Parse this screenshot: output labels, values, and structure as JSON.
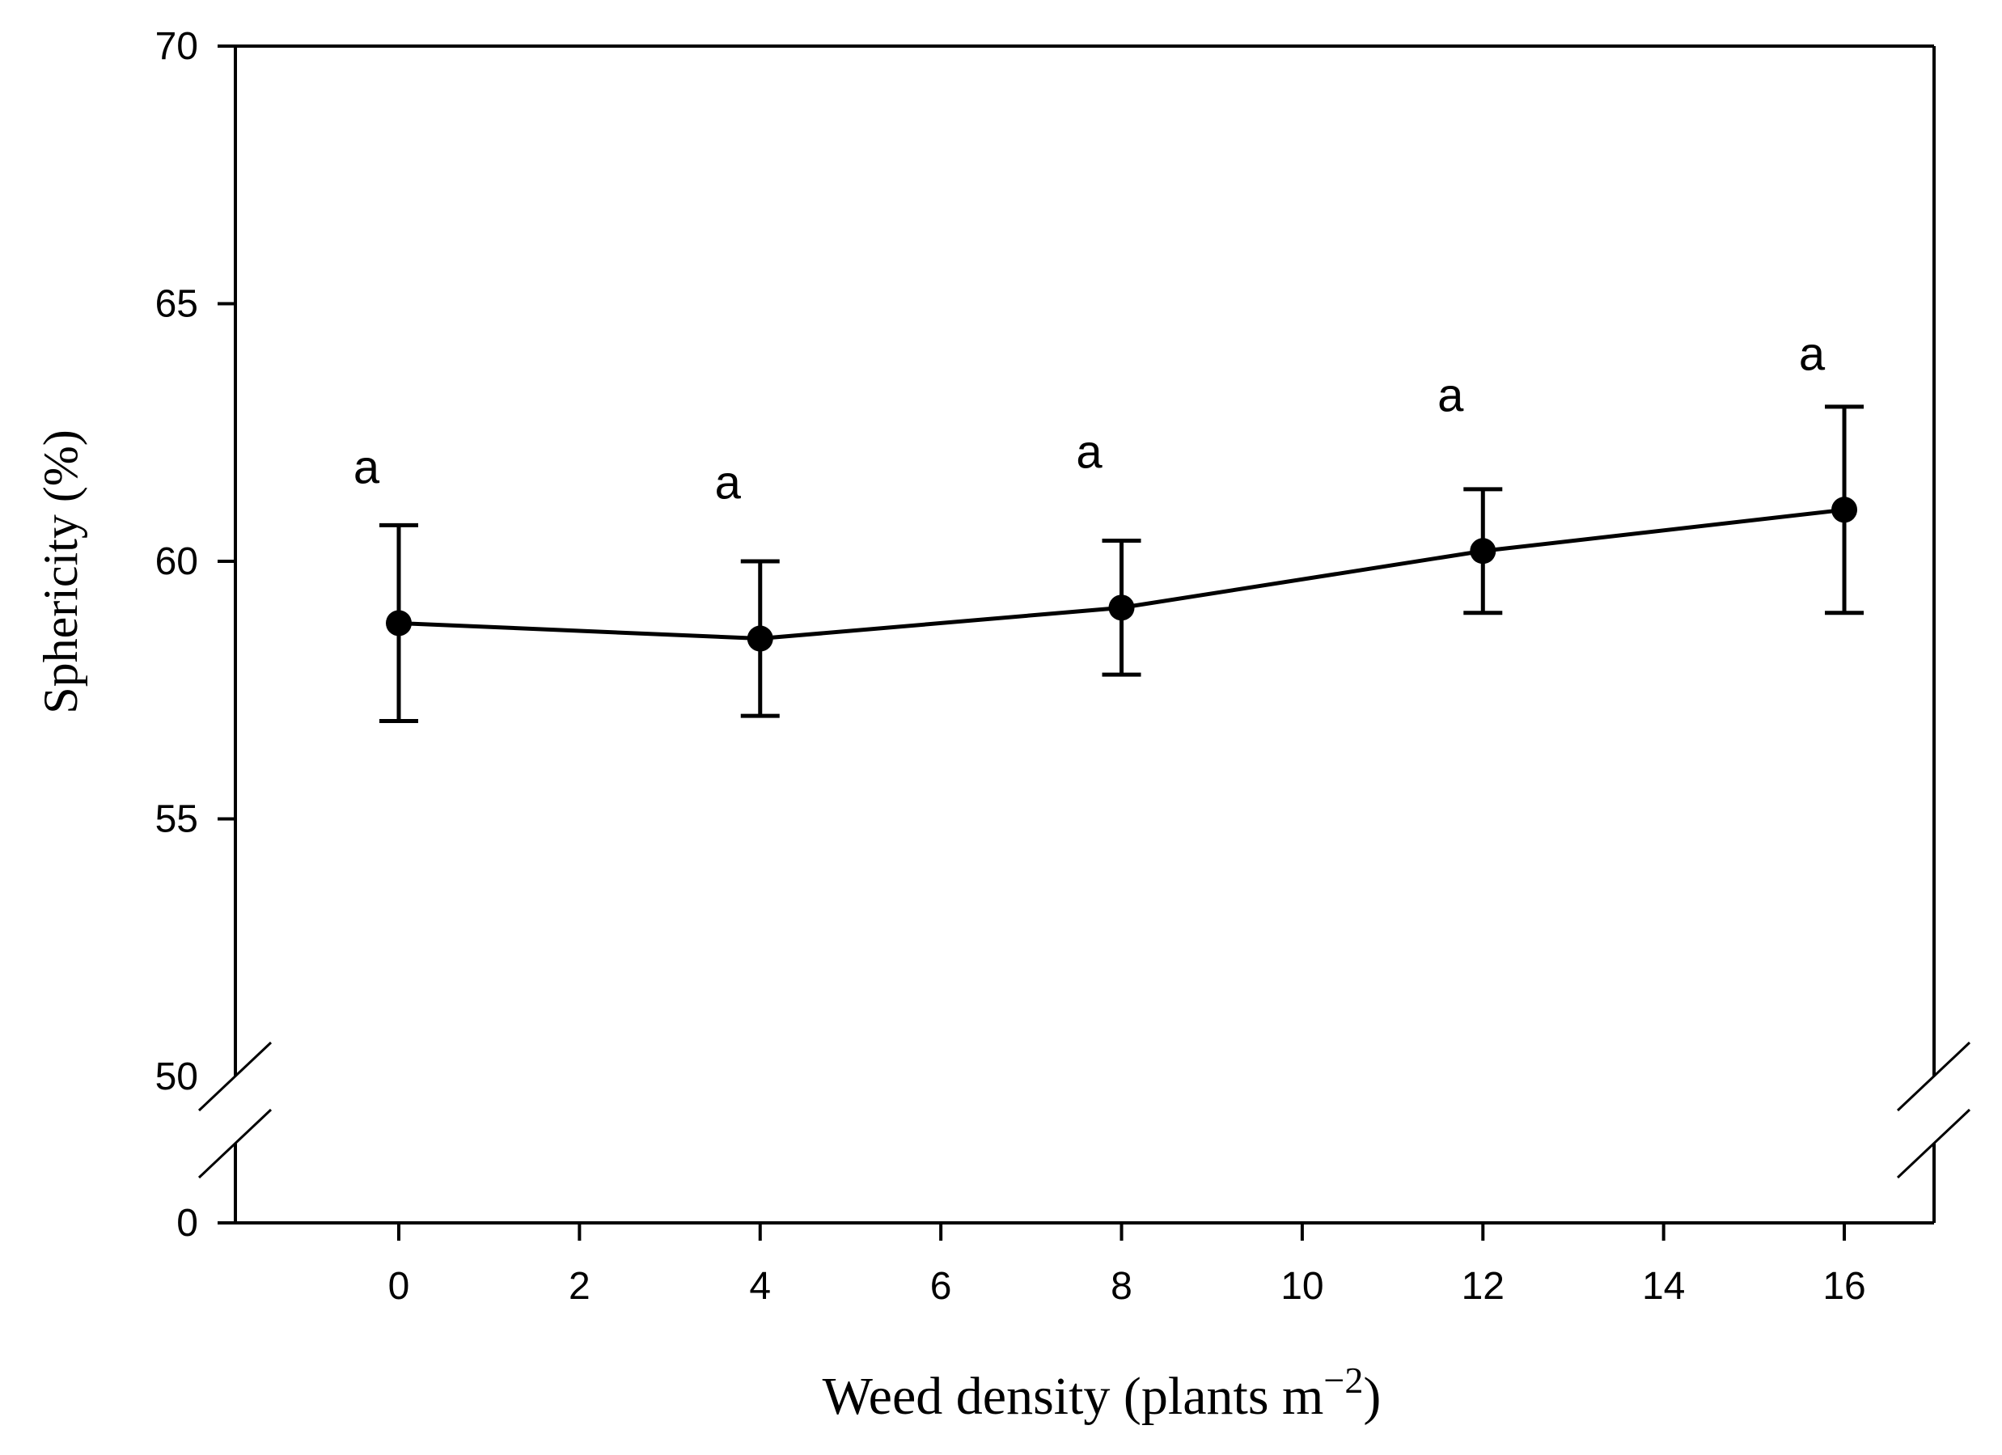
{
  "figure": {
    "background": "#ffffff",
    "ink_color": "#000000"
  },
  "chart_data": {
    "type": "line",
    "title": "",
    "xlabel": "Weed density (plants m⁻²)",
    "xlabel_parts": {
      "pre": "Weed density (plants m",
      "sup": "−2",
      "post": ")"
    },
    "ylabel": "Sphericity (%)",
    "x": [
      0,
      4,
      8,
      12,
      16
    ],
    "series": [
      {
        "name": "sphericity-mean",
        "marker": "filled-circle",
        "color": "#000000",
        "values": [
          58.8,
          58.5,
          59.1,
          60.2,
          61.0
        ],
        "error_upper": [
          60.7,
          60.0,
          60.4,
          61.4,
          63.0
        ],
        "error_lower": [
          56.9,
          57.0,
          57.8,
          59.0,
          59.0
        ]
      }
    ],
    "point_labels": [
      "a",
      "a",
      "a",
      "a",
      "a"
    ],
    "x_ticks": [
      0,
      2,
      4,
      6,
      8,
      10,
      12,
      14,
      16
    ],
    "y_ticks_upper_segment": [
      50,
      55,
      60,
      65,
      70
    ],
    "y_tick_bottom": 0,
    "ylim_upper_segment": [
      50,
      70
    ],
    "xlim": [
      -1.8,
      17.0
    ],
    "y_axis_break": {
      "between": [
        0,
        50
      ],
      "style": "double-slash"
    },
    "grid": false,
    "legend": false,
    "frame": "full-box"
  }
}
